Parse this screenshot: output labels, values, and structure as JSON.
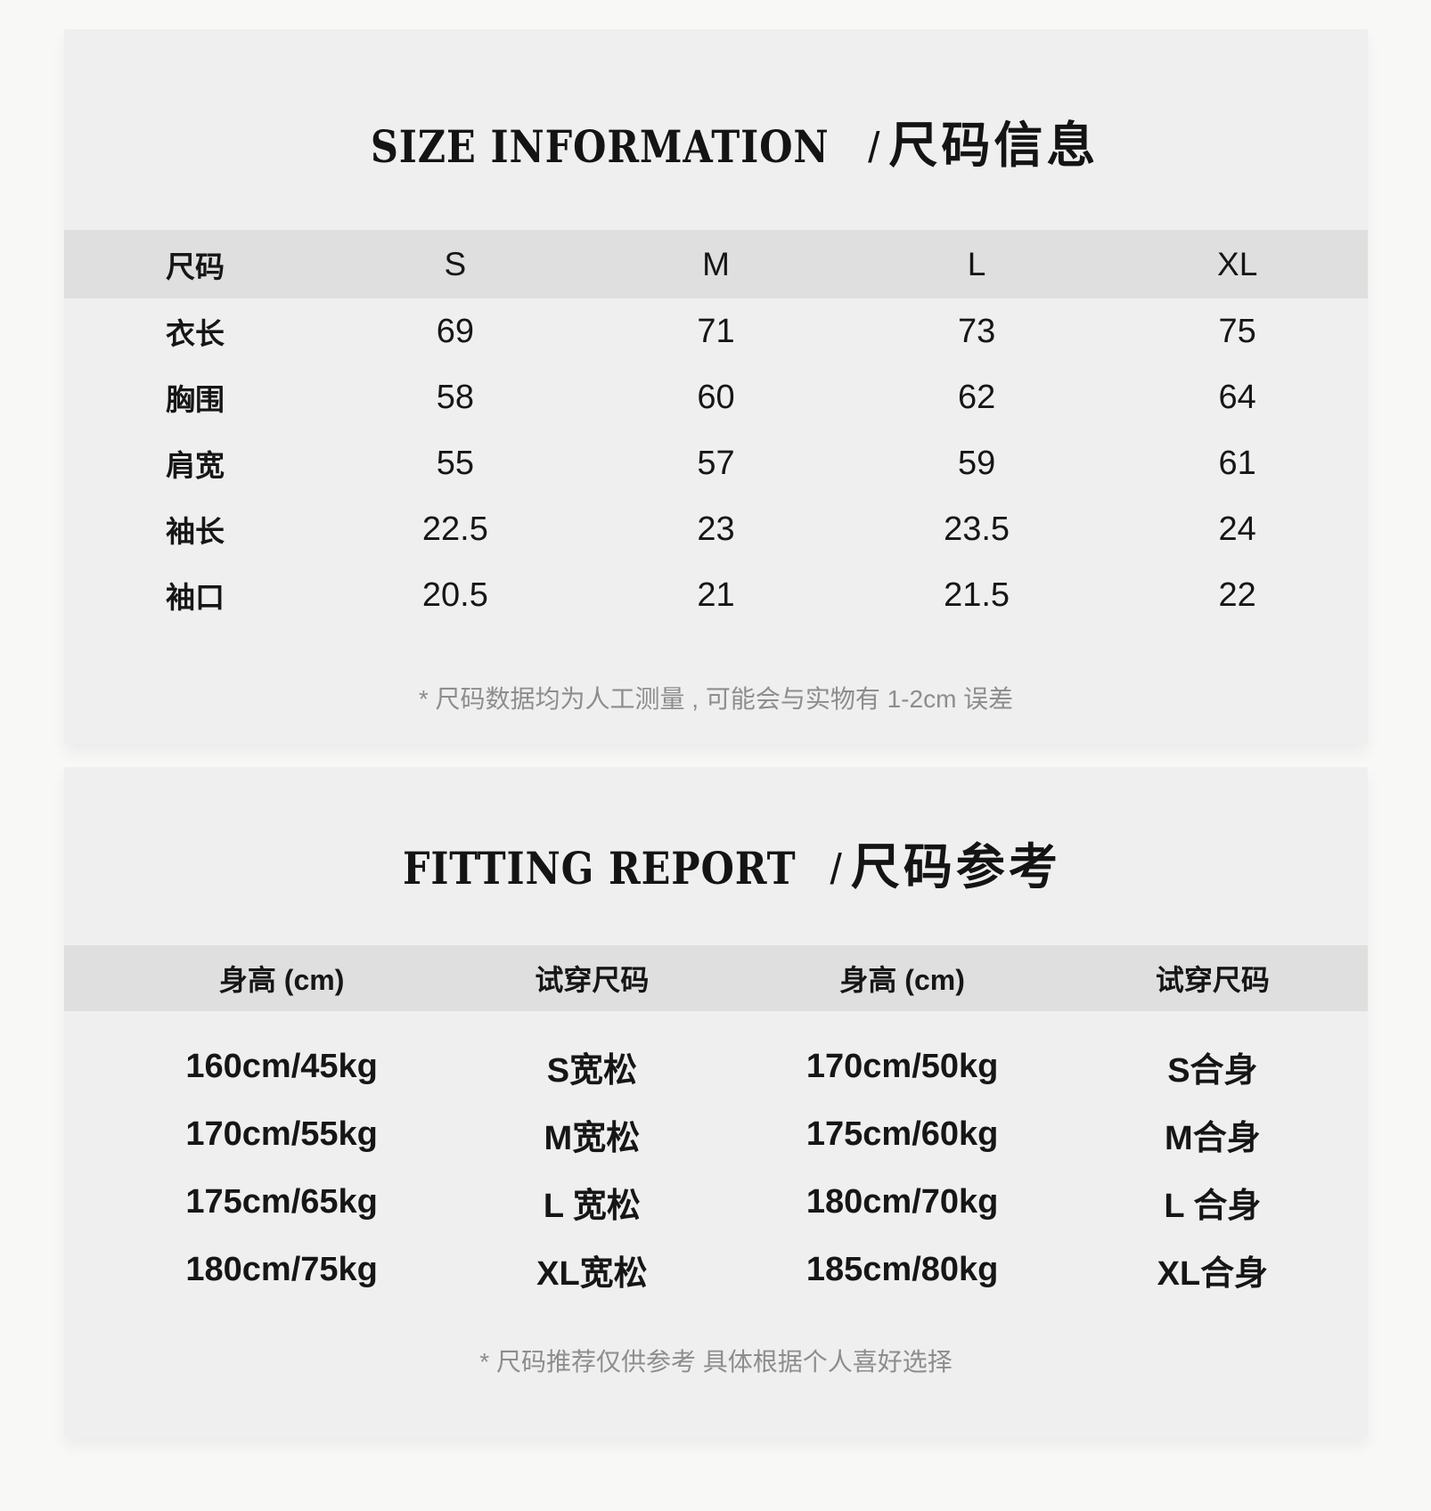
{
  "colors": {
    "page_background": "#f8f8f7",
    "card_background": "#f0efef",
    "table_header_band": "#e0dfdf",
    "text": "#161616",
    "footnote_text": "#8d8d8d"
  },
  "section_size": {
    "title": {
      "en": "SIZE INFORMATION",
      "divider": "/",
      "zh": "尺码信息"
    },
    "table": {
      "header": [
        "尺码",
        "S",
        "M",
        "L",
        "XL"
      ],
      "rows": [
        {
          "label": "衣长",
          "values": [
            "69",
            "71",
            "73",
            "75"
          ]
        },
        {
          "label": "胸围",
          "values": [
            "58",
            "60",
            "62",
            "64"
          ]
        },
        {
          "label": "肩宽",
          "values": [
            "55",
            "57",
            "59",
            "61"
          ]
        },
        {
          "label": "袖长",
          "values": [
            "22.5",
            "23",
            "23.5",
            "24"
          ]
        },
        {
          "label": "袖口",
          "values": [
            "20.5",
            "21",
            "21.5",
            "22"
          ]
        }
      ]
    },
    "footnote": "* 尺码数据均为人工测量 , 可能会与实物有 1-2cm 误差"
  },
  "section_fitting": {
    "title": {
      "en": "FITTING REPORT",
      "divider": "/",
      "zh": "尺码参考"
    },
    "table": {
      "header": [
        "身高 (cm)",
        "试穿尺码",
        "身高 (cm)",
        "试穿尺码"
      ],
      "rows": [
        [
          "160cm/45kg",
          "S宽松",
          "170cm/50kg",
          "S合身"
        ],
        [
          "170cm/55kg",
          "M宽松",
          "175cm/60kg",
          "M合身"
        ],
        [
          "175cm/65kg",
          "L 宽松",
          "180cm/70kg",
          "L 合身"
        ],
        [
          "180cm/75kg",
          "XL宽松",
          "185cm/80kg",
          "XL合身"
        ]
      ]
    },
    "footnote": "* 尺码推荐仅供参考 具体根据个人喜好选择"
  }
}
